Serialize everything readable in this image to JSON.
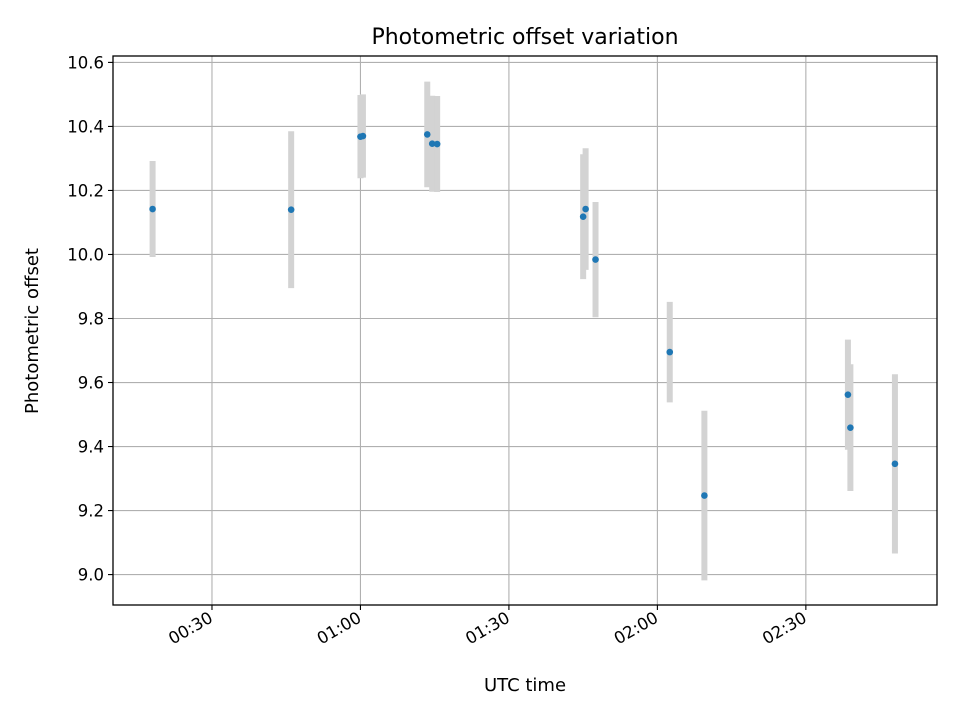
{
  "chart_data": {
    "type": "scatter",
    "title": "Photometric offset variation",
    "xlabel": "UTC time",
    "ylabel": "Photometric offset",
    "x_unit": "minutes after 00:00 UTC",
    "xlim": [
      10.0,
      176.5
    ],
    "ylim": [
      8.905,
      10.62
    ],
    "grid": true,
    "xticks": [
      {
        "value": 30,
        "label": "00:30"
      },
      {
        "value": 60,
        "label": "01:00"
      },
      {
        "value": 90,
        "label": "01:30"
      },
      {
        "value": 120,
        "label": "02:00"
      },
      {
        "value": 150,
        "label": "02:30"
      }
    ],
    "yticks": [
      {
        "value": 9.0,
        "label": "9.0"
      },
      {
        "value": 9.2,
        "label": "9.2"
      },
      {
        "value": 9.4,
        "label": "9.4"
      },
      {
        "value": 9.6,
        "label": "9.6"
      },
      {
        "value": 9.8,
        "label": "9.8"
      },
      {
        "value": 10.0,
        "label": "10.0"
      },
      {
        "value": 10.2,
        "label": "10.2"
      },
      {
        "value": 10.4,
        "label": "10.4"
      },
      {
        "value": 10.6,
        "label": "10.6"
      }
    ],
    "series": [
      {
        "name": "Photometric offset",
        "color": "#1f77b4",
        "errorbar_color": "#d3d3d3",
        "points": [
          {
            "x": 18.0,
            "y": 10.142,
            "yerr": 0.15
          },
          {
            "x": 46.0,
            "y": 10.14,
            "yerr": 0.245
          },
          {
            "x": 60.0,
            "y": 10.368,
            "yerr": 0.13
          },
          {
            "x": 60.5,
            "y": 10.37,
            "yerr": 0.13
          },
          {
            "x": 73.5,
            "y": 10.375,
            "yerr": 0.165
          },
          {
            "x": 74.5,
            "y": 10.346,
            "yerr": 0.15
          },
          {
            "x": 75.5,
            "y": 10.345,
            "yerr": 0.15
          },
          {
            "x": 105.0,
            "y": 10.118,
            "yerr": 0.195
          },
          {
            "x": 105.5,
            "y": 10.142,
            "yerr": 0.19
          },
          {
            "x": 107.5,
            "y": 9.984,
            "yerr": 0.18
          },
          {
            "x": 122.5,
            "y": 9.695,
            "yerr": 0.157
          },
          {
            "x": 129.5,
            "y": 9.247,
            "yerr": 0.265
          },
          {
            "x": 158.5,
            "y": 9.562,
            "yerr": 0.172
          },
          {
            "x": 159.0,
            "y": 9.459,
            "yerr": 0.198
          },
          {
            "x": 168.0,
            "y": 9.346,
            "yerr": 0.28
          }
        ]
      }
    ]
  }
}
